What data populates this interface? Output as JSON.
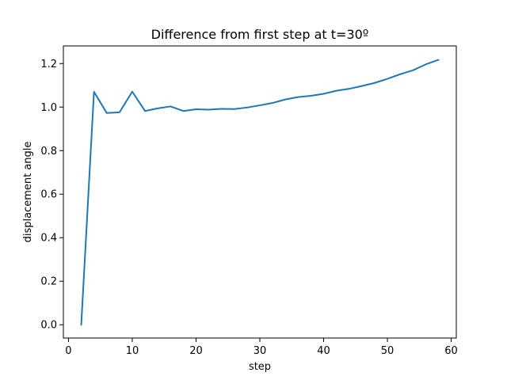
{
  "chart_data": {
    "type": "line",
    "title": "Difference from first step at t=30º",
    "xlabel": "step",
    "ylabel": "displacement angle",
    "xlim": [
      -0.8,
      60.8
    ],
    "ylim": [
      -0.061,
      1.281
    ],
    "xticks": [
      0,
      10,
      20,
      30,
      40,
      50,
      60
    ],
    "yticks": [
      0.0,
      0.2,
      0.4,
      0.6,
      0.8,
      1.0,
      1.2
    ],
    "yticks_labels": [
      "0.0",
      "0.2",
      "0.4",
      "0.6",
      "0.8",
      "1.0",
      "1.2"
    ],
    "grid": false,
    "series": [
      {
        "color": "#1f77b4",
        "x": [
          2,
          4,
          6,
          8,
          10,
          12,
          14,
          16,
          18,
          20,
          22,
          24,
          26,
          28,
          30,
          32,
          34,
          36,
          38,
          40,
          42,
          44,
          46,
          48,
          50,
          52,
          54,
          56,
          58
        ],
        "y": [
          0.0,
          1.07,
          0.973,
          0.976,
          1.071,
          0.982,
          0.994,
          1.003,
          0.982,
          0.99,
          0.988,
          0.992,
          0.991,
          0.998,
          1.008,
          1.019,
          1.035,
          1.046,
          1.052,
          1.061,
          1.075,
          1.084,
          1.097,
          1.111,
          1.13,
          1.151,
          1.169,
          1.196,
          1.217
        ]
      }
    ]
  }
}
